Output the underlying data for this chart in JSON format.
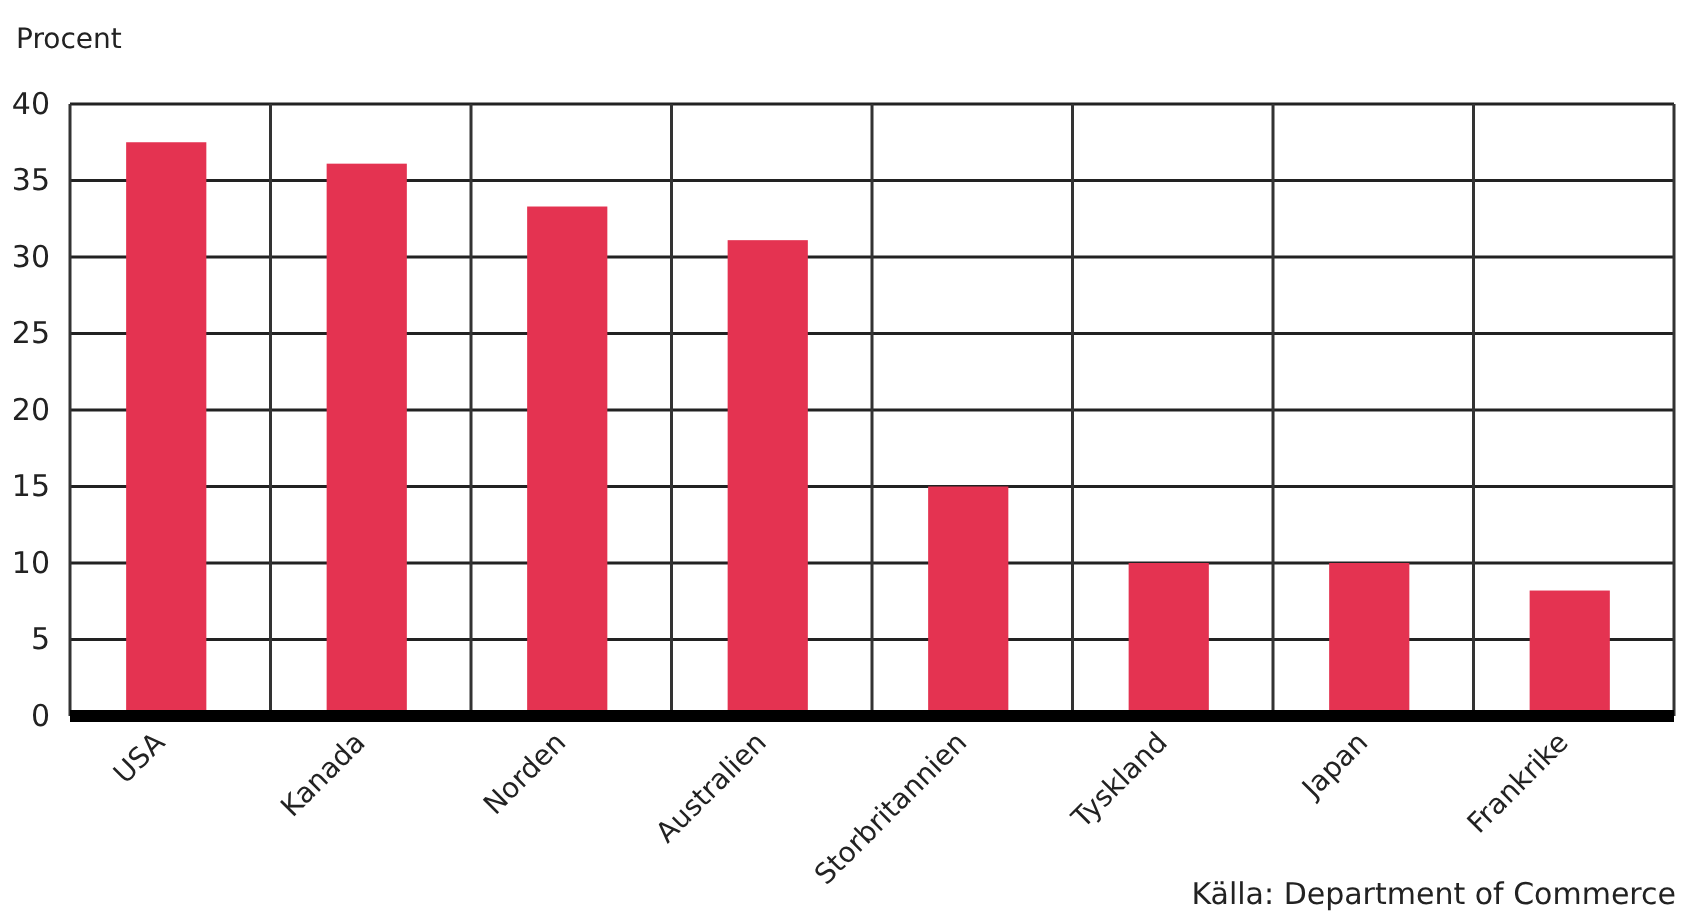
{
  "chart_data": {
    "type": "bar",
    "ylabel": "Procent",
    "categories": [
      "USA",
      "Kanada",
      "Norden",
      "Australien",
      "Storbritannien",
      "Tyskland",
      "Japan",
      "Frankrike"
    ],
    "values": [
      37.5,
      36.1,
      33.3,
      31.1,
      15,
      10,
      10,
      8.2
    ],
    "color": "#e43351",
    "ylim": [
      0,
      40
    ],
    "yticks": [
      0,
      5,
      10,
      15,
      20,
      25,
      30,
      35,
      40
    ],
    "grid": true,
    "annotations": [
      "Källa: Department of Commerce"
    ]
  }
}
